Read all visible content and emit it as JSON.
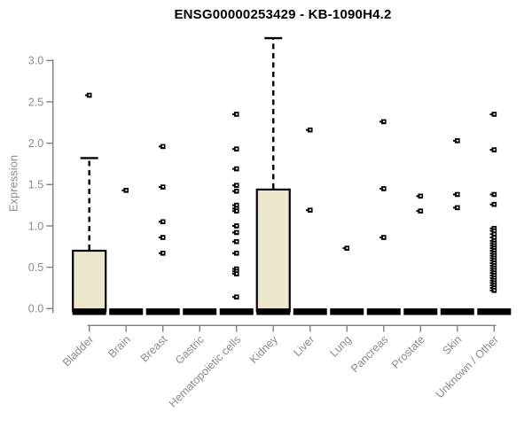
{
  "chart_data": {
    "type": "boxplot",
    "title": "ENSG00000253429 - KB-1090H4.2",
    "ylabel": "Expression",
    "xlabel": "",
    "ylim": [
      0,
      3.3
    ],
    "grid": false,
    "legend": null,
    "yticks": [
      0.0,
      0.5,
      1.0,
      1.5,
      2.0,
      2.5,
      3.0
    ],
    "ytick_labels": [
      "0.0",
      "0.5",
      "1.0",
      "1.5",
      "2.0",
      "2.5",
      "3.0"
    ],
    "categories": [
      "Bladder",
      "Brain",
      "Breast",
      "Gastric",
      "Hematopoietic cells",
      "Kidney",
      "Liver",
      "Lung",
      "Pancreas",
      "Prostate",
      "Skin",
      "Unknown / Other"
    ],
    "colors": {
      "box_fill": "#ece7cb",
      "box_stroke": "#000000",
      "whisker": "#000000",
      "outlier": "#000000",
      "axis": "#808080",
      "tick_label": "#8b8b8b",
      "title": "#000000"
    },
    "series": [
      {
        "name": "Bladder",
        "q1": 0,
        "median": 0,
        "q3": 0.7,
        "whisker_low": 0,
        "whisker_high": 1.82,
        "outliers": [
          2.58
        ]
      },
      {
        "name": "Brain",
        "q1": 0,
        "median": 0,
        "q3": 0,
        "whisker_low": 0,
        "whisker_high": 0,
        "outliers": [
          1.43
        ]
      },
      {
        "name": "Breast",
        "q1": 0,
        "median": 0,
        "q3": 0,
        "whisker_low": 0,
        "whisker_high": 0,
        "outliers": [
          1.96,
          1.47,
          1.05,
          0.86,
          0.67
        ]
      },
      {
        "name": "Gastric",
        "q1": 0,
        "median": 0,
        "q3": 0,
        "whisker_low": 0,
        "whisker_high": 0,
        "outliers": []
      },
      {
        "name": "Hematopoietic cells",
        "q1": 0,
        "median": 0,
        "q3": 0,
        "whisker_low": 0,
        "whisker_high": 0,
        "outliers": [
          2.35,
          1.93,
          1.69,
          1.49,
          1.42,
          1.25,
          1.21,
          1.18,
          1.0,
          0.92,
          0.81,
          0.67,
          0.48,
          0.45,
          0.42,
          0.14
        ]
      },
      {
        "name": "Kidney",
        "q1": 0,
        "median": 0,
        "q3": 1.44,
        "whisker_low": 0,
        "whisker_high": 3.27,
        "outliers": []
      },
      {
        "name": "Liver",
        "q1": 0,
        "median": 0,
        "q3": 0,
        "whisker_low": 0,
        "whisker_high": 0,
        "outliers": [
          2.16,
          1.19
        ]
      },
      {
        "name": "Lung",
        "q1": 0,
        "median": 0,
        "q3": 0,
        "whisker_low": 0,
        "whisker_high": 0,
        "outliers": [
          0.73
        ]
      },
      {
        "name": "Pancreas",
        "q1": 0,
        "median": 0,
        "q3": 0,
        "whisker_low": 0,
        "whisker_high": 0,
        "outliers": [
          2.26,
          1.45,
          0.86
        ]
      },
      {
        "name": "Prostate",
        "q1": 0,
        "median": 0,
        "q3": 0,
        "whisker_low": 0,
        "whisker_high": 0,
        "outliers": [
          1.36,
          1.18
        ]
      },
      {
        "name": "Skin",
        "q1": 0,
        "median": 0,
        "q3": 0,
        "whisker_low": 0,
        "whisker_high": 0,
        "outliers": [
          2.03,
          1.38,
          1.22
        ]
      },
      {
        "name": "Unknown / Other",
        "q1": 0,
        "median": 0,
        "q3": 0,
        "whisker_low": 0,
        "whisker_high": 0,
        "outliers": [
          2.35,
          1.92,
          1.38,
          1.26,
          0.97,
          0.94,
          0.9,
          0.86,
          0.82,
          0.79,
          0.76,
          0.73,
          0.7,
          0.67,
          0.64,
          0.61,
          0.58,
          0.55,
          0.52,
          0.49,
          0.46,
          0.43,
          0.4,
          0.37,
          0.34,
          0.31,
          0.28,
          0.25,
          0.22
        ]
      }
    ]
  }
}
